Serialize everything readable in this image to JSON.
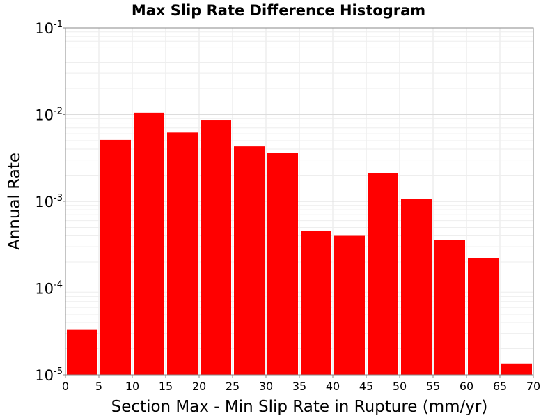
{
  "chart_data": {
    "type": "bar",
    "title": "Max Slip Rate Difference Histogram",
    "xlabel": "Section Max - Min Slip Rate in Rupture (mm/yr)",
    "ylabel": "Annual Rate",
    "x_scale": "linear",
    "y_scale": "log",
    "xlim": [
      0,
      70
    ],
    "ylim": [
      1e-05,
      0.1
    ],
    "bin_width": 5,
    "x_ticks": [
      0,
      5,
      10,
      15,
      20,
      25,
      30,
      35,
      40,
      45,
      50,
      55,
      60,
      65,
      70
    ],
    "x_tick_labels": [
      "0",
      "5",
      "10",
      "15",
      "20",
      "25",
      "30",
      "35",
      "40",
      "45",
      "50",
      "55",
      "60",
      "65",
      "70"
    ],
    "y_ticks": [
      {
        "value": 0.1,
        "base": "10",
        "exp": "-1"
      },
      {
        "value": 0.01,
        "base": "10",
        "exp": "-2"
      },
      {
        "value": 0.001,
        "base": "10",
        "exp": "-3"
      },
      {
        "value": 0.0001,
        "base": "10",
        "exp": "-4"
      },
      {
        "value": 1e-05,
        "base": "10",
        "exp": "-5"
      }
    ],
    "grid": true,
    "bar_color": "#ff0000",
    "series": [
      {
        "bins": [
          {
            "x_start": 0,
            "x_end": 5,
            "value": 3.35e-05
          },
          {
            "x_start": 5,
            "x_end": 10,
            "value": 0.0051
          },
          {
            "x_start": 10,
            "x_end": 15,
            "value": 0.0105
          },
          {
            "x_start": 15,
            "x_end": 20,
            "value": 0.0062
          },
          {
            "x_start": 20,
            "x_end": 25,
            "value": 0.0087
          },
          {
            "x_start": 25,
            "x_end": 30,
            "value": 0.0043
          },
          {
            "x_start": 30,
            "x_end": 35,
            "value": 0.0036
          },
          {
            "x_start": 35,
            "x_end": 40,
            "value": 0.00046
          },
          {
            "x_start": 40,
            "x_end": 45,
            "value": 0.0004
          },
          {
            "x_start": 45,
            "x_end": 50,
            "value": 0.0021
          },
          {
            "x_start": 50,
            "x_end": 55,
            "value": 0.00106
          },
          {
            "x_start": 55,
            "x_end": 60,
            "value": 0.00036
          },
          {
            "x_start": 60,
            "x_end": 65,
            "value": 0.00022
          },
          {
            "x_start": 65,
            "x_end": 70,
            "value": 1.35e-05
          }
        ]
      }
    ]
  }
}
